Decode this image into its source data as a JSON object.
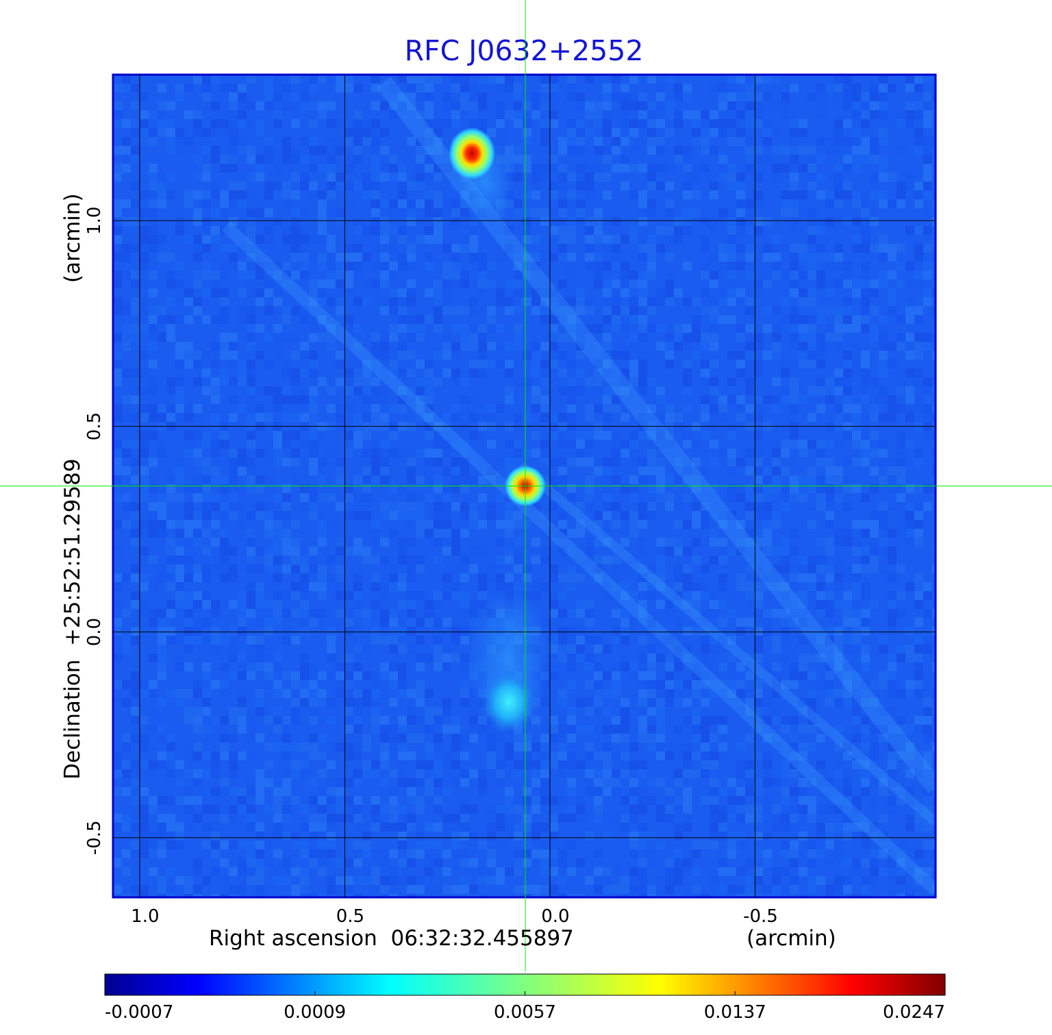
{
  "chart_data": {
    "type": "heatmap",
    "title": "RFC J0632+2552",
    "xlabel": "Right ascension  06:32:32.455897",
    "xunit": "(arcmin)",
    "ylabel": "Declination  +25:52:51.29589",
    "yunit": "(arcmin)",
    "xlim": [
      1.065,
      -0.94
    ],
    "ylim": [
      -0.645,
      1.355
    ],
    "xticks": [
      {
        "value": 1.0,
        "label": "1.0"
      },
      {
        "value": 0.5,
        "label": "0.5"
      },
      {
        "value": 0.0,
        "label": "0.0"
      },
      {
        "value": -0.5,
        "label": "-0.5"
      }
    ],
    "yticks": [
      {
        "value": 1.0,
        "label": "1.0"
      },
      {
        "value": 0.5,
        "label": "0.5"
      },
      {
        "value": 0.0,
        "label": "0.0"
      },
      {
        "value": -0.5,
        "label": "-0.5"
      }
    ],
    "grid": true,
    "crosshair": {
      "x": 0.06,
      "y": 0.355
    },
    "sources": [
      {
        "x": 0.19,
        "y": 1.17,
        "peak": 0.0247,
        "description": "compact source (north)"
      },
      {
        "x": 0.06,
        "y": 0.355,
        "peak": 0.022,
        "description": "compact source (center)"
      },
      {
        "x": 0.1,
        "y": -0.17,
        "peak": 0.004,
        "description": "diffuse extension (south)"
      }
    ],
    "colorbar": {
      "colormap": "jet",
      "ticks": [
        "-0.0007",
        "0.0009",
        "0.0057",
        "0.0137",
        "0.0247"
      ]
    }
  },
  "colors": {
    "title": "#1414d2",
    "grid": "#000000",
    "crosshair": "#00ee00",
    "frame": "#0000cc",
    "background_map": "#1a5cf0"
  }
}
